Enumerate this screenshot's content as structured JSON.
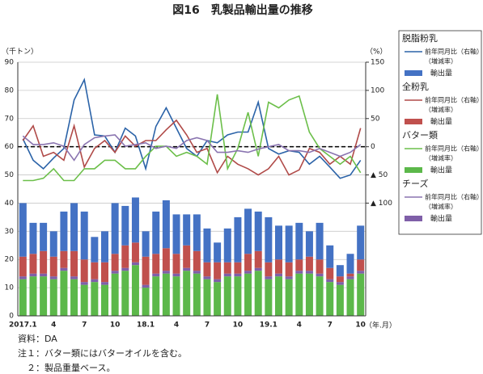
{
  "chart_data": {
    "type": "bar_line",
    "title": "図16　乳製品輸出量の推移",
    "y_label": "（千トン）",
    "y2_label": "（%）",
    "x_label": "（年.月）",
    "categories": [
      "2017.1",
      null,
      null,
      "4",
      null,
      null,
      "7",
      null,
      null,
      "10",
      null,
      null,
      "18.1",
      null,
      null,
      "4",
      null,
      null,
      "7",
      null,
      null,
      "10",
      null,
      null,
      "19.1",
      null,
      null,
      "4",
      null,
      null,
      "7",
      null,
      null,
      "10"
    ],
    "ylim": [
      0,
      90
    ],
    "yticks": [
      0,
      10,
      20,
      30,
      40,
      50,
      60,
      70,
      80,
      90
    ],
    "y2lim": [
      -300,
      150
    ],
    "y2ticks": [
      {
        "value": -100,
        "label": "▲ 100"
      },
      {
        "value": -50,
        "label": "▲ 50"
      },
      0,
      50,
      100,
      150
    ],
    "grid": true,
    "groups": [
      {
        "title": "脱脂粉乳",
        "series": [
          {
            "name": "前年同月比（右軸）",
            "note": "（増減率）",
            "color": "#2b63a8",
            "axis": "y2",
            "kind": "line",
            "values": [
              14,
              -24,
              -39,
              -20,
              -3,
              83,
              119,
              21,
              19,
              -10,
              33,
              19,
              -39,
              36,
              69,
              33,
              -3,
              -17,
              11,
              7,
              21,
              26,
              26,
              79,
              -3,
              -13,
              -7,
              -10,
              -31,
              -17,
              -36,
              -56,
              -50,
              -24
            ]
          },
          {
            "name": "輸出量",
            "color": "#4472c4",
            "kind": "bar",
            "values": [
              19,
              11,
              10,
              9,
              14,
              17,
              17,
              9,
              11,
              18,
              14,
              16,
              9,
              15,
              17,
              14,
              11,
              13,
              12,
              7,
              12,
              16,
              16,
              14,
              16,
              12,
              13,
              13,
              9,
              13,
              8,
              4,
              7,
              12
            ]
          }
        ]
      },
      {
        "title": "全粉乳",
        "series": [
          {
            "name": "前年同月比（右軸）",
            "note": "（増減率）",
            "color": "#b04a48",
            "axis": "y2",
            "kind": "line",
            "values": [
              11,
              37,
              -17,
              -10,
              -24,
              37,
              -36,
              -3,
              11,
              -10,
              19,
              1,
              11,
              11,
              30,
              47,
              21,
              -10,
              -3,
              -46,
              -17,
              -31,
              -39,
              -50,
              -39,
              -17,
              -50,
              -41,
              -3,
              -10,
              -31,
              -17,
              -31,
              33
            ]
          },
          {
            "name": "輸出量",
            "color": "#c0504d",
            "kind": "bar",
            "values": [
              7,
              7,
              8,
              7,
              6,
              9,
              8,
              6,
              7,
              6,
              8,
              7,
              10,
              7,
              8,
              7,
              8,
              7,
              5,
              6,
              4,
              4,
              6,
              6,
              5,
              5,
              5,
              4,
              5,
              5,
              4,
              2,
              1,
              4
            ]
          }
        ]
      },
      {
        "title": "バター類",
        "series": [
          {
            "name": "前年同月比（右軸）",
            "note": "（増減率）",
            "color": "#6cbf4a",
            "axis": "y2",
            "kind": "line",
            "values": [
              -60,
              -60,
              -56,
              -39,
              -60,
              -60,
              -39,
              -39,
              -24,
              -24,
              -39,
              -39,
              -17,
              1,
              1,
              -17,
              -10,
              -17,
              -31,
              93,
              -39,
              -3,
              61,
              -17,
              79,
              69,
              83,
              90,
              26,
              -3,
              -17,
              -31,
              -17,
              -46
            ]
          },
          {
            "name": "輸出量",
            "color": "#5cb84a",
            "kind": "bar",
            "values": [
              13,
              14,
              14,
              13,
              16,
              13,
              11,
              12,
              11,
              15,
              16,
              18,
              10,
              14,
              15,
              14,
              16,
              15,
              13,
              12,
              14,
              14,
              15,
              16,
              13,
              14,
              13,
              15,
              15,
              14,
              12,
              11,
              13,
              15
            ]
          }
        ]
      },
      {
        "title": "チーズ",
        "series": [
          {
            "name": "前年同月比（右軸）",
            "note": "（増減率）",
            "color": "#8a74b0",
            "axis": "y2",
            "kind": "line",
            "values": [
              19,
              4,
              4,
              7,
              1,
              -24,
              4,
              16,
              19,
              21,
              1,
              4,
              7,
              -3,
              1,
              -3,
              11,
              16,
              11,
              -10,
              -10,
              -7,
              -10,
              -4,
              0,
              4,
              -7,
              -7,
              -10,
              -3,
              -10,
              -17,
              -10,
              4
            ]
          },
          {
            "name": "輸出量",
            "color": "#7f5fa8",
            "kind": "bar",
            "values": [
              1,
              1,
              1,
              1,
              1,
              1,
              1,
              1,
              1,
              1,
              1,
              1,
              1,
              1,
              1,
              1,
              1,
              1,
              1,
              1,
              1,
              1,
              1,
              1,
              1,
              1,
              1,
              1,
              1,
              1,
              1,
              1,
              1,
              1
            ]
          }
        ]
      }
    ]
  },
  "notes": [
    "資料：DA",
    "注１：バター類にはバターオイルを含む。",
    "　２：製品重量ベース。"
  ]
}
